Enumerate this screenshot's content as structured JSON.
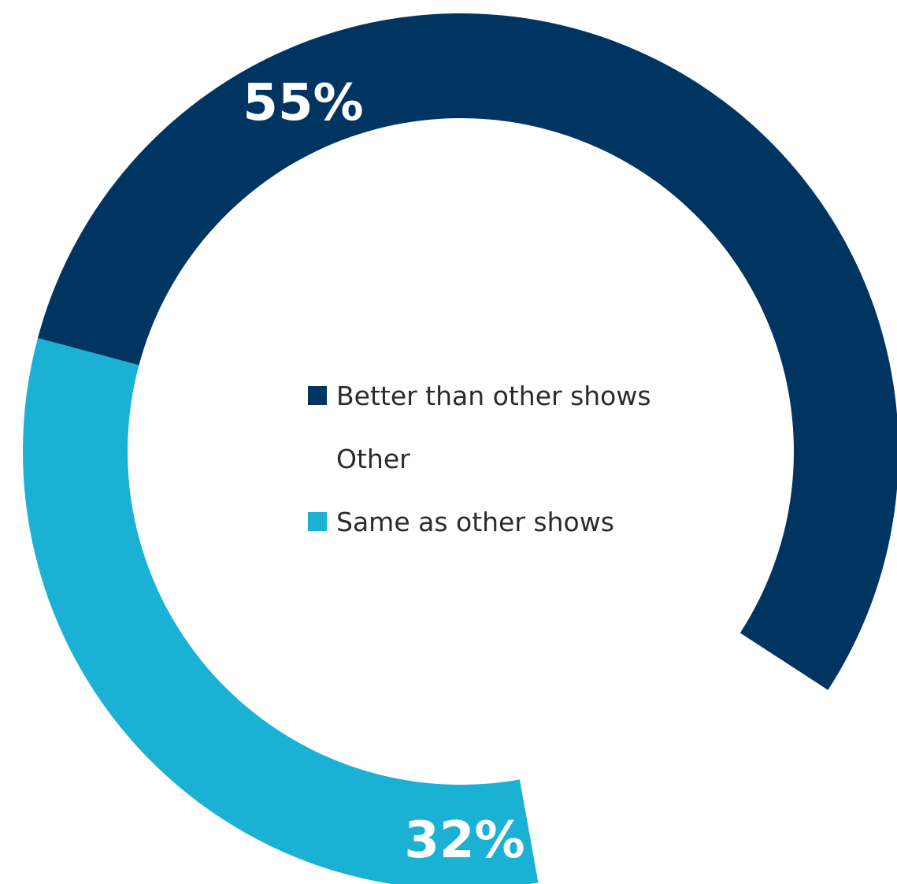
{
  "chart_data": {
    "type": "pie",
    "style": "donut",
    "series": [
      {
        "name": "Better than other shows",
        "value": 55,
        "label": "55%",
        "color": "#003461"
      },
      {
        "name": "Other",
        "value": 13,
        "label": "",
        "color": "#ffffff"
      },
      {
        "name": "Same as other shows",
        "value": 32,
        "label": "32%",
        "color": "#1ab1d5"
      }
    ],
    "legend": {
      "placement": "center",
      "items": [
        "Better than other shows",
        "Other",
        "Same as other shows"
      ]
    }
  }
}
